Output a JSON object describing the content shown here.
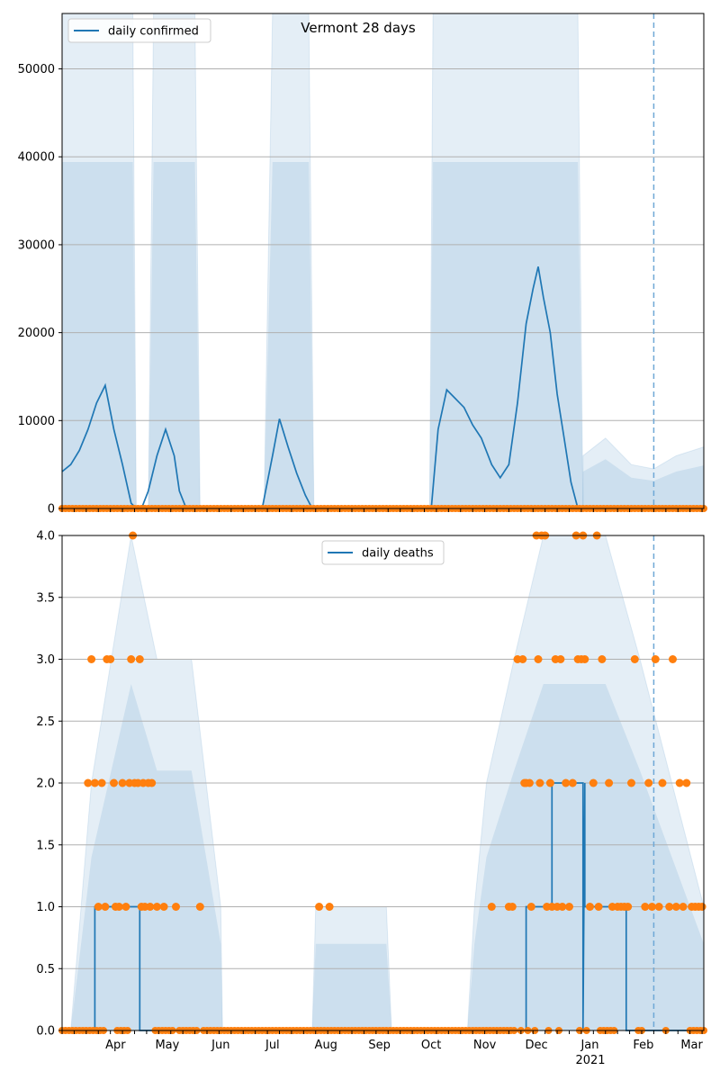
{
  "figure": {
    "title": "Vermont 28 days",
    "colors": {
      "series": "#1f77b4",
      "observed": "#ff7f0e",
      "band": "#1f77b4",
      "grid": "#b0b0b0",
      "marker_line": "#6fa8d6"
    }
  },
  "chart_data": [
    {
      "type": "line",
      "title": "Vermont 28 days",
      "legend": {
        "entries": [
          "daily confirmed"
        ],
        "placement": "upper left"
      },
      "xlabel": "",
      "ylabel": "",
      "ylim": [
        0,
        56300
      ],
      "yticks": [
        0,
        10000,
        20000,
        30000,
        40000,
        50000
      ],
      "ytick_labels": [
        "0",
        "10000",
        "20000",
        "30000",
        "40000",
        "50000"
      ],
      "x_range": [
        "2020-03-01",
        "2021-03-08"
      ],
      "vline_date": "2021-02-07",
      "grid": "horizontal",
      "series": [
        {
          "name": "daily confirmed",
          "x": [
            "2020-03-01",
            "2020-03-06",
            "2020-03-11",
            "2020-03-16",
            "2020-03-21",
            "2020-03-26",
            "2020-03-31",
            "2020-04-05",
            "2020-04-10",
            "2020-04-13",
            "2020-04-16",
            "2020-04-20",
            "2020-04-25",
            "2020-04-30",
            "2020-05-05",
            "2020-05-08",
            "2020-05-12",
            "2020-05-17",
            "2020-05-20",
            "2020-06-01",
            "2020-06-20",
            "2020-06-25",
            "2020-07-01",
            "2020-07-05",
            "2020-07-10",
            "2020-07-15",
            "2020-07-20",
            "2020-07-24",
            "2020-08-01",
            "2020-09-01",
            "2020-10-01",
            "2020-10-05",
            "2020-10-10",
            "2020-10-15",
            "2020-10-20",
            "2020-10-25",
            "2020-10-30",
            "2020-11-05",
            "2020-11-10",
            "2020-11-15",
            "2020-11-20",
            "2020-11-25",
            "2020-11-29",
            "2020-12-02",
            "2020-12-05",
            "2020-12-09",
            "2020-12-13",
            "2020-12-17",
            "2020-12-21",
            "2020-12-25",
            "2020-12-28",
            "2021-01-10",
            "2021-02-07",
            "2021-03-08"
          ],
          "values": [
            4200,
            5000,
            6600,
            9000,
            12000,
            14000,
            9000,
            5000,
            600,
            0,
            0,
            2000,
            6000,
            9000,
            6000,
            2000,
            0,
            0,
            0,
            0,
            0,
            0,
            6000,
            10200,
            7000,
            4000,
            1500,
            0,
            0,
            0,
            0,
            9000,
            13500,
            12500,
            11500,
            9500,
            8000,
            5000,
            3500,
            5000,
            12000,
            21000,
            25000,
            27500,
            24000,
            20000,
            13000,
            8000,
            3000,
            0,
            0,
            0,
            0,
            0
          ]
        }
      ],
      "observed_markers": {
        "name": "observed",
        "level": 0
      },
      "band_envelopes": [
        {
          "x": [
            "2020-03-01",
            "2020-03-08",
            "2020-03-15",
            "2020-03-20",
            "2020-04-05",
            "2020-04-11",
            "2020-04-13"
          ],
          "upper": [
            56300,
            56300,
            56300,
            56300,
            56300,
            56300,
            0
          ]
        },
        {
          "x": [
            "2020-04-20",
            "2020-04-23",
            "2020-05-01",
            "2020-05-10",
            "2020-05-17",
            "2020-05-20"
          ],
          "upper": [
            0,
            56300,
            56300,
            56300,
            56300,
            0
          ]
        },
        {
          "x": [
            "2020-06-26",
            "2020-07-01",
            "2020-07-10",
            "2020-07-15",
            "2020-07-22",
            "2020-07-25"
          ],
          "upper": [
            0,
            56300,
            56300,
            56300,
            56300,
            0
          ]
        },
        {
          "x": [
            "2020-09-30",
            "2020-10-02",
            "2020-10-20",
            "2020-11-20",
            "2020-12-10",
            "2020-12-25",
            "2020-12-28"
          ],
          "upper": [
            0,
            56300,
            56300,
            56300,
            56300,
            56300,
            0
          ]
        },
        {
          "x": [
            "2020-12-28",
            "2021-01-10",
            "2021-01-25",
            "2021-02-07",
            "2021-02-20",
            "2021-03-08"
          ],
          "upper": [
            6000,
            8000,
            5000,
            4500,
            6000,
            7000
          ]
        }
      ]
    },
    {
      "type": "scatter",
      "title": "",
      "legend": {
        "entries": [
          "daily deaths"
        ],
        "placement": "upper center"
      },
      "xlabel": "",
      "ylabel": "",
      "ylim": [
        0,
        4.0
      ],
      "yticks": [
        0,
        0.5,
        1.0,
        1.5,
        2.0,
        2.5,
        3.0,
        3.5,
        4.0
      ],
      "ytick_labels": [
        "0.0",
        "0.5",
        "1.0",
        "1.5",
        "2.0",
        "2.5",
        "3.0",
        "3.5",
        "4.0"
      ],
      "x_range": [
        "2020-03-01",
        "2021-03-08"
      ],
      "x_tick_labels": [
        "Apr",
        "May",
        "Jun",
        "Jul",
        "Aug",
        "Sep",
        "Oct",
        "Nov",
        "Dec",
        "Jan",
        "Feb",
        "Mar"
      ],
      "x_tick_dates": [
        "2020-04-01",
        "2020-05-01",
        "2020-06-01",
        "2020-07-01",
        "2020-08-01",
        "2020-09-01",
        "2020-10-01",
        "2020-11-01",
        "2020-12-01",
        "2021-01-01",
        "2021-02-01",
        "2021-03-01"
      ],
      "x_year_label": "2021",
      "vline_date": "2021-02-07",
      "grid": "horizontal",
      "series": [
        {
          "name": "daily deaths",
          "x": [
            "2020-03-01",
            "2020-03-20",
            "2020-03-20",
            "2020-04-15",
            "2020-04-15",
            "2020-11-25",
            "2020-11-25",
            "2020-12-10",
            "2020-12-10",
            "2020-12-28",
            "2020-12-28",
            "2020-12-29",
            "2020-12-29",
            "2021-01-22",
            "2021-01-22",
            "2021-03-08"
          ],
          "values": [
            0,
            0,
            1,
            1,
            0,
            0,
            1,
            1,
            2,
            2,
            0,
            2,
            1,
            1,
            0,
            0
          ]
        },
        {
          "name": "observed",
          "points": [
            [
              "2020-03-16",
              2
            ],
            [
              "2020-03-18",
              3
            ],
            [
              "2020-03-20",
              2
            ],
            [
              "2020-03-22",
              1
            ],
            [
              "2020-03-24",
              2
            ],
            [
              "2020-03-26",
              1
            ],
            [
              "2020-03-27",
              3
            ],
            [
              "2020-03-29",
              3
            ],
            [
              "2020-03-31",
              2
            ],
            [
              "2020-04-01",
              1
            ],
            [
              "2020-04-03",
              1
            ],
            [
              "2020-04-05",
              2
            ],
            [
              "2020-04-07",
              1
            ],
            [
              "2020-04-09",
              2
            ],
            [
              "2020-04-10",
              3
            ],
            [
              "2020-04-11",
              4
            ],
            [
              "2020-04-12",
              2
            ],
            [
              "2020-04-14",
              2
            ],
            [
              "2020-04-15",
              3
            ],
            [
              "2020-04-16",
              1
            ],
            [
              "2020-04-17",
              2
            ],
            [
              "2020-04-18",
              1
            ],
            [
              "2020-04-20",
              2
            ],
            [
              "2020-04-21",
              1
            ],
            [
              "2020-04-22",
              2
            ],
            [
              "2020-04-25",
              1
            ],
            [
              "2020-04-29",
              1
            ],
            [
              "2020-05-06",
              1
            ],
            [
              "2020-05-20",
              1
            ],
            [
              "2020-07-28",
              1
            ],
            [
              "2020-08-03",
              1
            ],
            [
              "2020-11-05",
              1
            ],
            [
              "2020-11-15",
              1
            ],
            [
              "2020-11-17",
              1
            ],
            [
              "2020-11-20",
              3
            ],
            [
              "2020-11-23",
              3
            ],
            [
              "2020-11-24",
              2
            ],
            [
              "2020-11-25",
              2
            ],
            [
              "2020-11-27",
              2
            ],
            [
              "2020-11-28",
              1
            ],
            [
              "2020-12-01",
              4
            ],
            [
              "2020-12-02",
              3
            ],
            [
              "2020-12-03",
              2
            ],
            [
              "2020-12-04",
              4
            ],
            [
              "2020-12-06",
              4
            ],
            [
              "2020-12-07",
              1
            ],
            [
              "2020-12-09",
              2
            ],
            [
              "2020-12-10",
              1
            ],
            [
              "2020-12-12",
              3
            ],
            [
              "2020-12-13",
              1
            ],
            [
              "2020-12-15",
              3
            ],
            [
              "2020-12-16",
              1
            ],
            [
              "2020-12-18",
              2
            ],
            [
              "2020-12-20",
              1
            ],
            [
              "2020-12-22",
              2
            ],
            [
              "2020-12-24",
              4
            ],
            [
              "2020-12-25",
              3
            ],
            [
              "2020-12-27",
              3
            ],
            [
              "2020-12-28",
              4
            ],
            [
              "2020-12-29",
              3
            ],
            [
              "2021-01-01",
              1
            ],
            [
              "2021-01-03",
              2
            ],
            [
              "2021-01-05",
              4
            ],
            [
              "2021-01-06",
              1
            ],
            [
              "2021-01-08",
              3
            ],
            [
              "2021-01-12",
              2
            ],
            [
              "2021-01-14",
              1
            ],
            [
              "2021-01-17",
              1
            ],
            [
              "2021-01-19",
              1
            ],
            [
              "2021-01-21",
              1
            ],
            [
              "2021-01-23",
              1
            ],
            [
              "2021-01-25",
              2
            ],
            [
              "2021-01-27",
              3
            ],
            [
              "2021-02-02",
              1
            ],
            [
              "2021-02-04",
              2
            ],
            [
              "2021-02-06",
              1
            ],
            [
              "2021-02-08",
              3
            ],
            [
              "2021-02-10",
              1
            ],
            [
              "2021-02-12",
              2
            ],
            [
              "2021-02-16",
              1
            ],
            [
              "2021-02-18",
              3
            ],
            [
              "2021-02-20",
              1
            ],
            [
              "2021-02-22",
              2
            ],
            [
              "2021-02-24",
              1
            ],
            [
              "2021-02-26",
              2
            ],
            [
              "2021-03-01",
              1
            ],
            [
              "2021-03-03",
              1
            ],
            [
              "2021-03-05",
              1
            ],
            [
              "2021-03-07",
              1
            ]
          ]
        }
      ],
      "band_envelopes": [
        {
          "x": [
            "2020-03-06",
            "2020-03-12",
            "2020-03-18",
            "2020-04-10",
            "2020-04-25",
            "2020-05-15",
            "2020-06-01",
            "2020-06-02"
          ],
          "upper": [
            0,
            1,
            2,
            4,
            3,
            3,
            1,
            0
          ]
        },
        {
          "x": [
            "2020-07-24",
            "2020-07-26",
            "2020-08-01",
            "2020-08-05",
            "2020-09-05",
            "2020-09-08"
          ],
          "upper": [
            0,
            1,
            1,
            1,
            1,
            0
          ]
        },
        {
          "x": [
            "2020-10-22",
            "2020-10-26",
            "2020-11-02",
            "2020-11-18",
            "2020-12-05",
            "2020-12-20",
            "2021-01-10",
            "2021-01-30",
            "2021-03-08"
          ],
          "upper": [
            0,
            1,
            2,
            3,
            4,
            4,
            4,
            3,
            1
          ]
        }
      ]
    }
  ]
}
